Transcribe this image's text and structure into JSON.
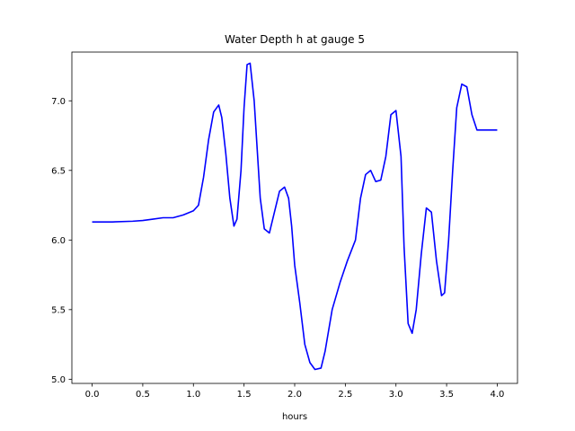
{
  "chart_data": {
    "type": "line",
    "title": "Water Depth h at gauge 5",
    "xlabel": "hours",
    "ylabel": "",
    "xlim": [
      -0.2,
      4.2
    ],
    "ylim": [
      4.97,
      7.35
    ],
    "grid": false,
    "legend": "none",
    "xticks": [
      0.0,
      0.5,
      1.0,
      1.5,
      2.0,
      2.5,
      3.0,
      3.5,
      4.0
    ],
    "xtick_labels": [
      "0.0",
      "0.5",
      "1.0",
      "1.5",
      "2.0",
      "2.5",
      "3.0",
      "3.5",
      "4.0"
    ],
    "yticks": [
      5.0,
      5.5,
      6.0,
      6.5,
      7.0
    ],
    "ytick_labels": [
      "5.0",
      "5.5",
      "6.0",
      "6.5",
      "7.0"
    ],
    "series": [
      {
        "color": "#0000ff",
        "x": [
          0.0,
          0.2,
          0.4,
          0.5,
          0.6,
          0.7,
          0.8,
          0.9,
          1.0,
          1.05,
          1.1,
          1.15,
          1.2,
          1.25,
          1.28,
          1.32,
          1.36,
          1.4,
          1.43,
          1.47,
          1.5,
          1.53,
          1.56,
          1.6,
          1.63,
          1.66,
          1.7,
          1.75,
          1.8,
          1.85,
          1.9,
          1.94,
          1.97,
          2.0,
          2.05,
          2.1,
          2.15,
          2.2,
          2.26,
          2.3,
          2.37,
          2.45,
          2.52,
          2.6,
          2.65,
          2.7,
          2.75,
          2.8,
          2.85,
          2.9,
          2.95,
          3.0,
          3.05,
          3.08,
          3.12,
          3.16,
          3.2,
          3.25,
          3.3,
          3.35,
          3.4,
          3.45,
          3.48,
          3.52,
          3.56,
          3.6,
          3.65,
          3.7,
          3.75,
          3.8,
          3.85,
          3.88,
          3.92,
          3.96,
          4.0
        ],
        "y": [
          6.13,
          6.13,
          6.135,
          6.14,
          6.15,
          6.16,
          6.16,
          6.18,
          6.21,
          6.25,
          6.45,
          6.72,
          6.92,
          6.97,
          6.88,
          6.62,
          6.3,
          6.1,
          6.15,
          6.5,
          6.95,
          7.26,
          7.27,
          7.0,
          6.65,
          6.3,
          6.08,
          6.05,
          6.2,
          6.35,
          6.38,
          6.3,
          6.1,
          5.82,
          5.55,
          5.25,
          5.12,
          5.07,
          5.08,
          5.2,
          5.5,
          5.7,
          5.85,
          6.0,
          6.3,
          6.47,
          6.5,
          6.42,
          6.43,
          6.6,
          6.9,
          6.93,
          6.6,
          5.95,
          5.4,
          5.33,
          5.5,
          5.9,
          6.23,
          6.2,
          5.85,
          5.6,
          5.62,
          6.0,
          6.5,
          6.95,
          7.12,
          7.1,
          6.9,
          6.79,
          6.79,
          6.79,
          6.79,
          6.79,
          6.79
        ]
      }
    ]
  }
}
